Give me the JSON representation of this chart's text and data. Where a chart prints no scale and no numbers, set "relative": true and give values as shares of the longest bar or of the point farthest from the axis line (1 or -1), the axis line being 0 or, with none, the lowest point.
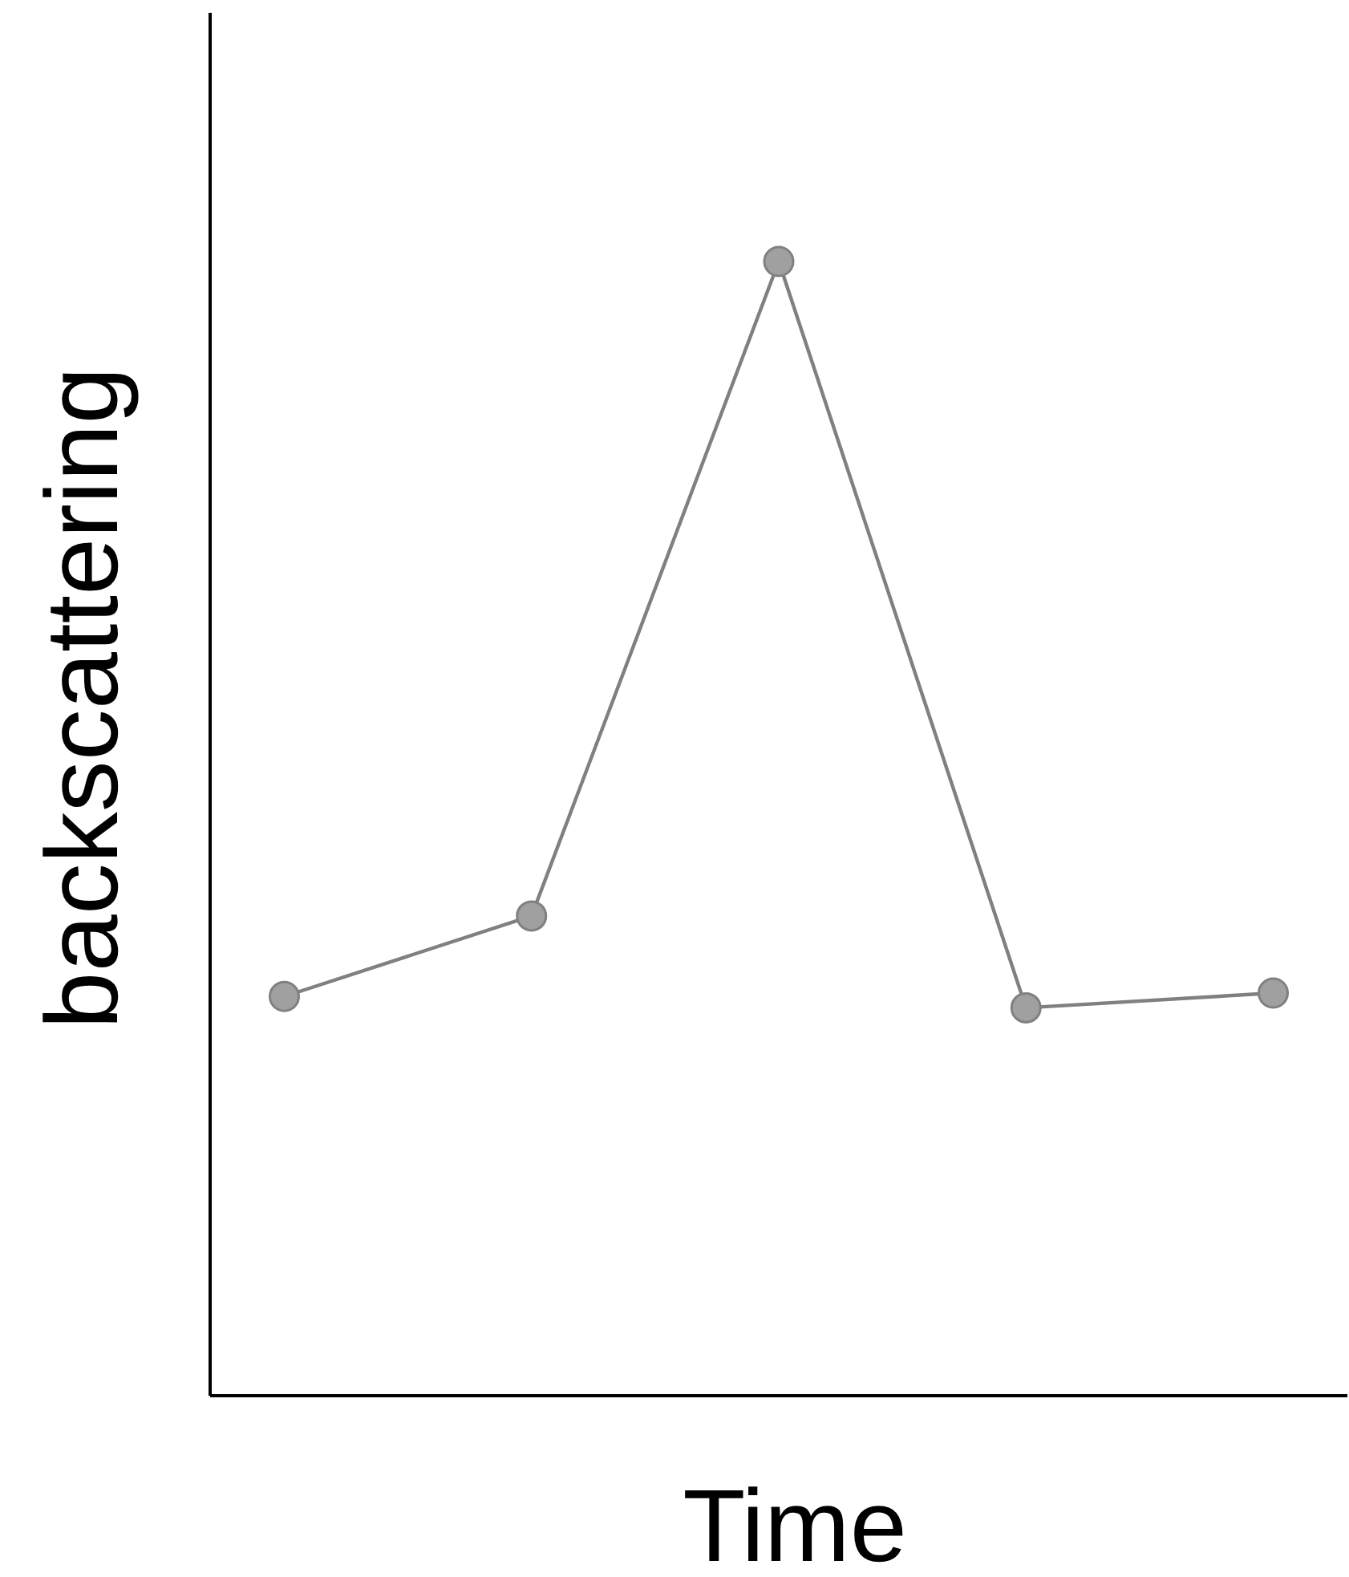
{
  "chart_data": {
    "type": "line",
    "relative": true,
    "xlabel": "Time",
    "ylabel": "backscattering",
    "categories": [
      null,
      null,
      null,
      null,
      null
    ],
    "marker": "circle",
    "series": [
      {
        "color": "#808080",
        "values": [
          0.352,
          0.423,
          1,
          0.342,
          0.355
        ]
      }
    ]
  }
}
